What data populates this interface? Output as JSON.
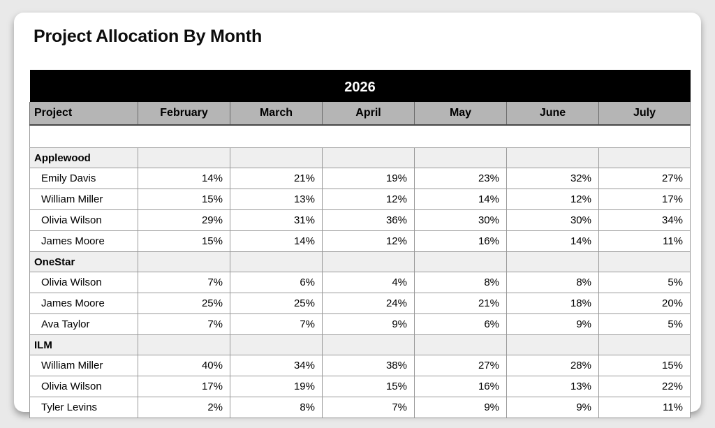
{
  "page": {
    "title": "Project Allocation By Month"
  },
  "table": {
    "year": "2026",
    "columns": [
      "Project",
      "February",
      "March",
      "April",
      "May",
      "June",
      "July"
    ],
    "groups": [
      {
        "name": "Applewood",
        "members": [
          {
            "name": "Emily Davis",
            "values": [
              "14%",
              "21%",
              "19%",
              "23%",
              "32%",
              "27%"
            ]
          },
          {
            "name": "William Miller",
            "values": [
              "15%",
              "13%",
              "12%",
              "14%",
              "12%",
              "17%"
            ]
          },
          {
            "name": "Olivia Wilson",
            "values": [
              "29%",
              "31%",
              "36%",
              "30%",
              "30%",
              "34%"
            ]
          },
          {
            "name": "James Moore",
            "values": [
              "15%",
              "14%",
              "12%",
              "16%",
              "14%",
              "11%"
            ]
          }
        ]
      },
      {
        "name": "OneStar",
        "members": [
          {
            "name": "Olivia Wilson",
            "values": [
              "7%",
              "6%",
              "4%",
              "8%",
              "8%",
              "5%"
            ]
          },
          {
            "name": "James Moore",
            "values": [
              "25%",
              "25%",
              "24%",
              "21%",
              "18%",
              "20%"
            ]
          },
          {
            "name": "Ava Taylor",
            "values": [
              "7%",
              "7%",
              "9%",
              "6%",
              "9%",
              "5%"
            ]
          }
        ]
      },
      {
        "name": "ILM",
        "members": [
          {
            "name": "William Miller",
            "values": [
              "40%",
              "34%",
              "38%",
              "27%",
              "28%",
              "15%"
            ]
          },
          {
            "name": "Olivia Wilson",
            "values": [
              "17%",
              "19%",
              "15%",
              "16%",
              "13%",
              "22%"
            ]
          },
          {
            "name": "Tyler Levins",
            "values": [
              "2%",
              "8%",
              "7%",
              "9%",
              "9%",
              "11%"
            ]
          }
        ]
      }
    ]
  },
  "colors": {
    "page_background": "#e9e9e9",
    "card_background": "#ffffff",
    "year_banner_background": "#000000",
    "year_banner_text": "#ffffff",
    "header_row_background": "#b5b5b5",
    "group_row_background": "#efefef",
    "cell_border": "#999999"
  }
}
